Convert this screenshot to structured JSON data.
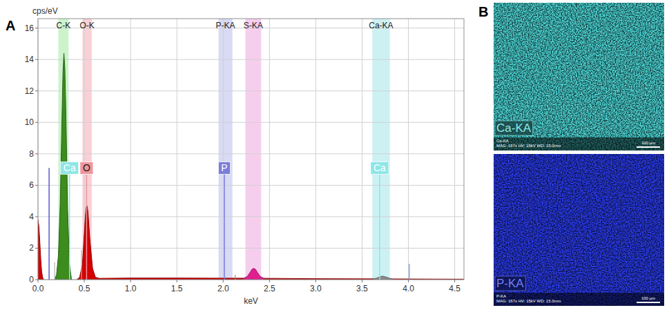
{
  "panels": [
    "A",
    "B"
  ],
  "chart_data": {
    "type": "area",
    "x_label": "keV",
    "y_label": "cps/eV",
    "xlim": [
      0,
      4.6
    ],
    "ylim": [
      0,
      16.6
    ],
    "xticks": [
      {
        "value": 0,
        "label": "0.0"
      },
      {
        "value": 0.5,
        "label": "0.5"
      },
      {
        "value": 1,
        "label": "1.0"
      },
      {
        "value": 1.5,
        "label": "1.5"
      },
      {
        "value": 2,
        "label": "2.0"
      },
      {
        "value": 2.5,
        "label": "2.5"
      },
      {
        "value": 3,
        "label": "3.0"
      },
      {
        "value": 3.5,
        "label": "3.5"
      },
      {
        "value": 4,
        "label": "4.0"
      },
      {
        "value": 4.5,
        "label": "4.5"
      }
    ],
    "yticks": [
      0,
      2,
      4,
      6,
      8,
      10,
      12,
      14,
      16
    ],
    "grid": true,
    "element_bands": [
      {
        "label": "C-K",
        "from": 0.22,
        "to": 0.33,
        "color": "#bff0bf"
      },
      {
        "label": "O-K",
        "from": 0.48,
        "to": 0.58,
        "color": "#f7c4cb"
      },
      {
        "label": "P-KA",
        "from": 1.95,
        "to": 2.1,
        "color": "#cfd2f2"
      },
      {
        "label": "S-KA",
        "from": 2.24,
        "to": 2.41,
        "color": "#f4c2e8"
      },
      {
        "label": "Ca-KA",
        "from": 3.61,
        "to": 3.8,
        "color": "#c0eef0"
      }
    ],
    "series": [
      {
        "color": "#d40000",
        "x": [
          0,
          0.01,
          0.02,
          0.03,
          0.04,
          0.05,
          0.06
        ],
        "values": [
          3.8,
          3.4,
          2.4,
          1.3,
          0.5,
          0.15,
          0
        ]
      },
      {
        "color": "#3c8c1e",
        "x": [
          0.18,
          0.2,
          0.22,
          0.24,
          0.26,
          0.27,
          0.28,
          0.29,
          0.3,
          0.32,
          0.34,
          0.36
        ],
        "values": [
          0,
          0.3,
          1.5,
          4.8,
          10.5,
          13.2,
          14.4,
          13.5,
          11,
          4.5,
          1,
          0.1
        ]
      },
      {
        "color": "#d40000",
        "x": [
          0.42,
          0.45,
          0.48,
          0.5,
          0.51,
          0.52,
          0.53,
          0.54,
          0.56,
          0.59,
          0.62,
          0.66
        ],
        "values": [
          0,
          0.15,
          1,
          2.9,
          3.9,
          4.6,
          4.7,
          4.3,
          2.6,
          0.7,
          0.15,
          0.08
        ]
      },
      {
        "color": "#d40000",
        "x": [
          0.66,
          1,
          1.5,
          2,
          2.2,
          2.5,
          3,
          3.5,
          4,
          4.5,
          4.6
        ],
        "values": [
          0.08,
          0.1,
          0.1,
          0.09,
          0.09,
          0.08,
          0.06,
          0.05,
          0.04,
          0.03,
          0.03
        ]
      },
      {
        "color": "#e0208f",
        "x": [
          2.22,
          2.26,
          2.29,
          2.31,
          2.33,
          2.35,
          2.37,
          2.4,
          2.44
        ],
        "values": [
          0.08,
          0.2,
          0.45,
          0.65,
          0.72,
          0.65,
          0.45,
          0.2,
          0.08
        ]
      },
      {
        "color": "#8a8a8a",
        "x": [
          3.62,
          3.66,
          3.69,
          3.72,
          3.75,
          3.79,
          3.83
        ],
        "values": [
          0.03,
          0.1,
          0.18,
          0.22,
          0.18,
          0.1,
          0.03
        ]
      }
    ],
    "line_markers": [
      {
        "x": 0.12,
        "y": 7.1,
        "color": "#3030c0"
      },
      {
        "x": 0.18,
        "y": 1.1,
        "color": "#b0b0b0"
      },
      {
        "x": 0.47,
        "y": 1.9,
        "color": "#b0b0b0"
      },
      {
        "x": 2.13,
        "y": 0.3,
        "color": "#909090"
      },
      {
        "x": 4.01,
        "y": 1,
        "color": "#6a8ff0"
      }
    ],
    "element_markers": [
      {
        "label": "Ca",
        "x": 0.341,
        "y": 7.1,
        "color": "#8ee6e6"
      },
      {
        "label": "O",
        "x": 0.525,
        "y": 7.1,
        "color": "#f0959c"
      },
      {
        "label": "P",
        "x": 2.013,
        "y": 7.1,
        "color": "#7a7ed8"
      },
      {
        "label": "Ca",
        "x": 3.69,
        "y": 7.1,
        "color": "#8ee6e6"
      }
    ]
  },
  "maps": [
    {
      "label": "Ca-KA",
      "caption": [
        "Ca-KA",
        "MAG: 167x  HV: 15kV  WD: 15.0mm"
      ],
      "scale_bar": "100 µm",
      "color": "#4fdcdc"
    },
    {
      "label": "P-KA",
      "caption": [
        "P-KA",
        "MAG: 167x  HV: 15kV  WD: 15.0mm"
      ],
      "scale_bar": "100 µm",
      "color": "#2a3cf0"
    }
  ]
}
